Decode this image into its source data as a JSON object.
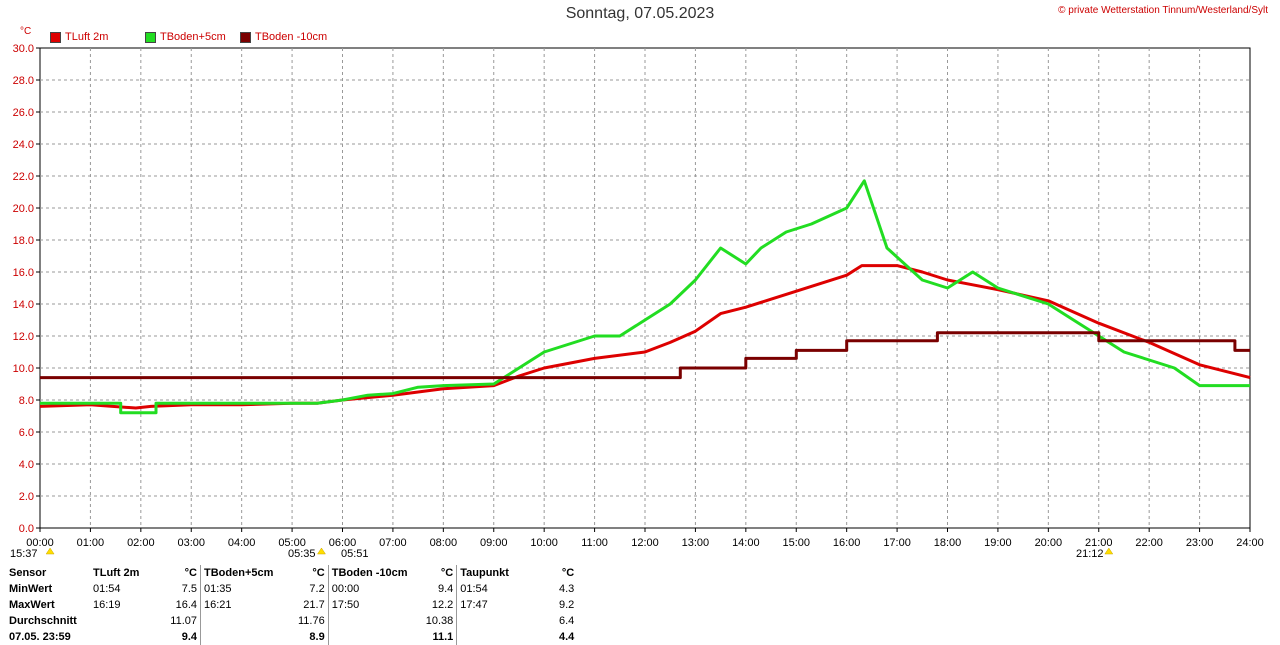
{
  "title": "Sonntag, 07.05.2023",
  "copyright": "© private Wetterstation Tinnum/Westerland/Sylt",
  "unit_label": "°C",
  "legend": [
    {
      "label": "TLuft 2m",
      "color": "#dd0000"
    },
    {
      "label": "TBoden+5cm",
      "color": "#22dd22"
    },
    {
      "label": "TBoden -10cm",
      "color": "#7a0000"
    }
  ],
  "sun_times": {
    "sunrise_label": "05:35",
    "sunset_label": "21:12",
    "left_label": "15:37",
    "moon_label": "05:51"
  },
  "chart_data": {
    "type": "line",
    "title": "Sonntag, 07.05.2023",
    "ylabel": "°C",
    "xlim": [
      0,
      24
    ],
    "ylim": [
      0,
      30
    ],
    "x_tick_labels": [
      "00:00",
      "01:00",
      "02:00",
      "03:00",
      "04:00",
      "05:00",
      "06:00",
      "07:00",
      "08:00",
      "09:00",
      "10:00",
      "11:00",
      "12:00",
      "13:00",
      "14:00",
      "15:00",
      "16:00",
      "17:00",
      "18:00",
      "19:00",
      "20:00",
      "21:00",
      "22:00",
      "23:00",
      "24:00"
    ],
    "y_tick_labels": [
      "0.0",
      "2.0",
      "4.0",
      "6.0",
      "8.0",
      "10.0",
      "12.0",
      "14.0",
      "16.0",
      "18.0",
      "20.0",
      "22.0",
      "24.0",
      "26.0",
      "28.0",
      "30.0"
    ],
    "grid": true,
    "series": [
      {
        "name": "TLuft 2m",
        "color": "#dd0000",
        "x": [
          0,
          1,
          1.9,
          2.2,
          3,
          4,
          5,
          5.5,
          6,
          7,
          8,
          9,
          9.5,
          10,
          11,
          12,
          12.5,
          13,
          13.5,
          14,
          14.5,
          15,
          15.5,
          16,
          16.3,
          17,
          17.5,
          18,
          18.5,
          19,
          20,
          20.5,
          21,
          22,
          23,
          24
        ],
        "y": [
          7.6,
          7.7,
          7.5,
          7.6,
          7.7,
          7.7,
          7.8,
          7.8,
          8.0,
          8.3,
          8.7,
          8.9,
          9.5,
          10.0,
          10.6,
          11.0,
          11.6,
          12.3,
          13.4,
          13.8,
          14.3,
          14.8,
          15.3,
          15.8,
          16.4,
          16.4,
          16.0,
          15.5,
          15.2,
          14.9,
          14.2,
          13.5,
          12.8,
          11.6,
          10.2,
          9.4
        ]
      },
      {
        "name": "TBoden+5cm",
        "color": "#22dd22",
        "x": [
          0,
          1.6,
          1.6,
          2.3,
          2.3,
          5,
          5.5,
          6,
          6.5,
          7,
          7.5,
          8,
          9,
          9.5,
          10,
          11,
          11.5,
          12,
          12.5,
          13,
          13.5,
          14,
          14.3,
          14.8,
          15.3,
          16,
          16.35,
          16.8,
          17.5,
          18,
          18.5,
          19,
          20,
          20.5,
          21,
          21.5,
          22,
          22.5,
          23,
          24
        ],
        "y": [
          7.8,
          7.8,
          7.2,
          7.2,
          7.8,
          7.8,
          7.8,
          8.0,
          8.3,
          8.4,
          8.8,
          8.9,
          9.0,
          10.0,
          11.0,
          12.0,
          12.0,
          13.0,
          14.0,
          15.5,
          17.5,
          16.5,
          17.5,
          18.5,
          19.0,
          20.0,
          21.7,
          17.5,
          15.5,
          15.0,
          16.0,
          15.0,
          14.0,
          13.0,
          12.0,
          11.0,
          10.5,
          10.0,
          8.9,
          8.9
        ]
      },
      {
        "name": "TBoden -10cm",
        "color": "#7a0000",
        "x": [
          0,
          12.7,
          12.7,
          14,
          14,
          15,
          15,
          16,
          16,
          17.8,
          17.8,
          21,
          21,
          23.7,
          23.7,
          24
        ],
        "y": [
          9.4,
          9.4,
          10.0,
          10.0,
          10.6,
          10.6,
          11.1,
          11.1,
          11.7,
          11.7,
          12.2,
          12.2,
          11.7,
          11.7,
          11.1,
          11.1
        ]
      }
    ]
  },
  "stats": {
    "header": [
      "Sensor",
      "TLuft 2m",
      "°C",
      "TBoden+5cm",
      "°C",
      "TBoden -10cm",
      "°C",
      "Taupunkt",
      "°C"
    ],
    "rows": [
      {
        "label": "MinWert",
        "c": [
          "01:54",
          "7.5",
          "01:35",
          "7.2",
          "00:00",
          "9.4",
          "01:54",
          "4.3"
        ]
      },
      {
        "label": "MaxWert",
        "c": [
          "16:19",
          "16.4",
          "16:21",
          "21.7",
          "17:50",
          "12.2",
          "17:47",
          "9.2"
        ]
      },
      {
        "label": "Durchschnitt",
        "c": [
          "",
          "11.07",
          "",
          "11.76",
          "",
          "10.38",
          "",
          "6.4"
        ]
      },
      {
        "label": "07.05. 23:59",
        "c": [
          "",
          "9.4",
          "",
          "8.9",
          "",
          "11.1",
          "",
          "4.4"
        ]
      }
    ]
  }
}
